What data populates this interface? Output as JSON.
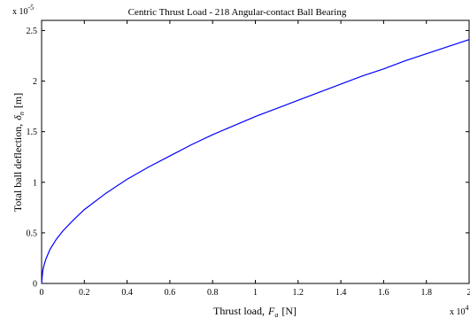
{
  "chart_data": {
    "type": "line",
    "title": "Centric Thrust Load - 218 Angular-contact Ball Bearing",
    "xlabel": {
      "prefix": "Thrust load,",
      "symbol": "F",
      "subscript": "a",
      "unit": "[N]"
    },
    "ylabel": {
      "prefix": "Total ball deflection,",
      "symbol": "δ",
      "subscript": "n",
      "unit": "[m]"
    },
    "x_multiplier": "x 10",
    "x_multiplier_exp": "4",
    "y_multiplier": "x 10",
    "y_multiplier_exp": "-5",
    "xlim": [
      0,
      2
    ],
    "ylim": [
      0,
      2.6
    ],
    "xticks": [
      "0",
      "0.2",
      "0.4",
      "0.6",
      "0.8",
      "1",
      "1.2",
      "1.4",
      "1.6",
      "1.8",
      "2"
    ],
    "yticks": [
      "0",
      "0.5",
      "1",
      "1.5",
      "2",
      "2.5"
    ],
    "grid": false,
    "series": [
      {
        "color": "#0000ff",
        "x": [
          0,
          0.005,
          0.01,
          0.02,
          0.04,
          0.07,
          0.1,
          0.15,
          0.2,
          0.3,
          0.4,
          0.5,
          0.6,
          0.7,
          0.8,
          0.9,
          1.0,
          1.1,
          1.2,
          1.3,
          1.4,
          1.5,
          1.6,
          1.7,
          1.8,
          1.9,
          2.0
        ],
        "y": [
          0,
          0.12,
          0.17,
          0.24,
          0.34,
          0.44,
          0.52,
          0.63,
          0.73,
          0.89,
          1.03,
          1.15,
          1.26,
          1.37,
          1.47,
          1.56,
          1.65,
          1.73,
          1.81,
          1.89,
          1.97,
          2.05,
          2.12,
          2.2,
          2.27,
          2.34,
          2.41
        ]
      }
    ]
  }
}
